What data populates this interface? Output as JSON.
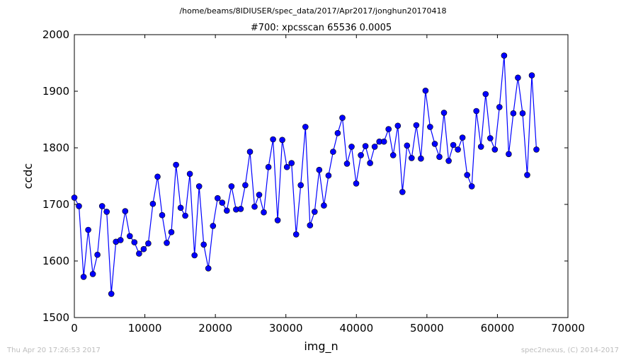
{
  "suptitle": "/home/beams/8IDIUSER/spec_data/2017/Apr2017/jonghun20170418",
  "footer": {
    "timestamp": "Thu Apr 20 17:26:53 2017",
    "credit": "spec2nexus, (C) 2014-2017"
  },
  "colors": {
    "series": "#0000ff",
    "axes": "#000000",
    "footer": "#bdbdbd"
  },
  "chart_data": {
    "type": "line",
    "title": "#700: xpcsscan 65536 0.0005",
    "xlabel": "img_n",
    "ylabel": "ccdc",
    "xlim": [
      0,
      70000
    ],
    "ylim": [
      1500,
      2000
    ],
    "xticks": [
      0,
      10000,
      20000,
      30000,
      40000,
      50000,
      60000,
      70000
    ],
    "yticks": [
      1500,
      1600,
      1700,
      1800,
      1900,
      2000
    ],
    "grid": false,
    "marker": "circle",
    "series": [
      {
        "x": [
          0,
          655,
          1311,
          1966,
          2621,
          3277,
          3932,
          4587,
          5243,
          5898,
          6553,
          7209,
          7864,
          8519,
          9175,
          9830,
          10485,
          11141,
          11796,
          12451,
          13107,
          13762,
          14417,
          15073,
          15728,
          16383,
          17039,
          17694,
          18349,
          19005,
          19660,
          20315,
          20971,
          21626,
          22281,
          22937,
          23592,
          24247,
          24903,
          25558,
          26214,
          26869,
          27524,
          28180,
          28835,
          29490,
          30146,
          30801,
          31456,
          32112,
          32767,
          33422,
          34078,
          34733,
          35388,
          36044,
          36699,
          37354,
          38010,
          38665,
          39320,
          39976,
          40631,
          41286,
          41942,
          42597,
          43252,
          43908,
          44563,
          45218,
          45874,
          46529,
          47185,
          47840,
          48495,
          49151,
          49806,
          50461,
          51117,
          51772,
          52427,
          53083,
          53738,
          54393,
          55049,
          55704,
          56359,
          57015,
          57670,
          58325,
          58981,
          59636,
          60291,
          60947,
          61602,
          62257,
          62913,
          63568,
          64223,
          64879,
          65534
        ],
        "values": [
          1712,
          1697,
          1572,
          1655,
          1577,
          1611,
          1697,
          1687,
          1542,
          1634,
          1637,
          1688,
          1644,
          1633,
          1613,
          1621,
          1631,
          1701,
          1749,
          1681,
          1632,
          1651,
          1770,
          1694,
          1680,
          1754,
          1610,
          1732,
          1629,
          1587,
          1662,
          1711,
          1703,
          1689,
          1732,
          1691,
          1692,
          1734,
          1793,
          1696,
          1717,
          1686,
          1766,
          1815,
          1672,
          1814,
          1766,
          1773,
          1647,
          1734,
          1837,
          1663,
          1687,
          1761,
          1698,
          1751,
          1793,
          1826,
          1853,
          1772,
          1802,
          1737,
          1787,
          1803,
          1773,
          1802,
          1811,
          1811,
          1833,
          1787,
          1839,
          1722,
          1804,
          1782,
          1840,
          1781,
          1901,
          1837,
          1807,
          1784,
          1862,
          1777,
          1805,
          1797,
          1818,
          1752,
          1732,
          1865,
          1802,
          1895,
          1817,
          1797,
          1872,
          1963,
          1789,
          1861,
          1924,
          1861,
          1752,
          1928,
          1797
        ]
      }
    ]
  }
}
